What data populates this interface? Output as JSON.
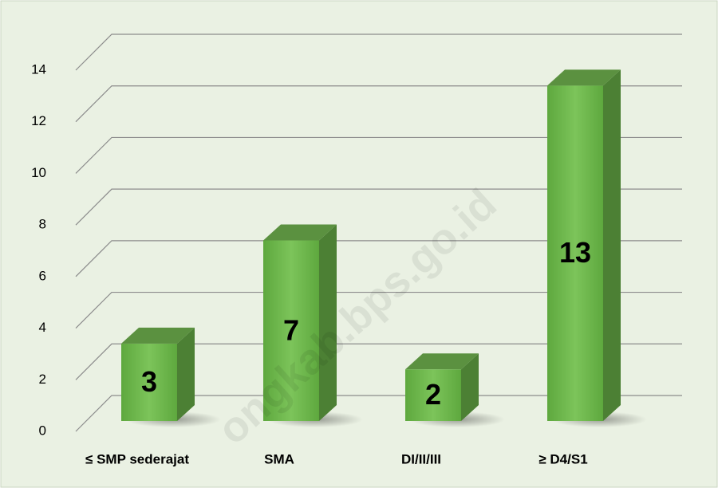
{
  "chart_data": {
    "type": "bar3d",
    "categories": [
      "≤ SMP sederajat",
      "SMA",
      "DI/II/III",
      "≥ D4/S1"
    ],
    "values": [
      3,
      7,
      2,
      13
    ],
    "color": "#6cb84c",
    "ylim": [
      0,
      14
    ],
    "yticks": [
      0,
      2,
      4,
      6,
      8,
      10,
      12,
      14
    ],
    "grid": true,
    "watermark": "ongkab.bps.go.id"
  }
}
